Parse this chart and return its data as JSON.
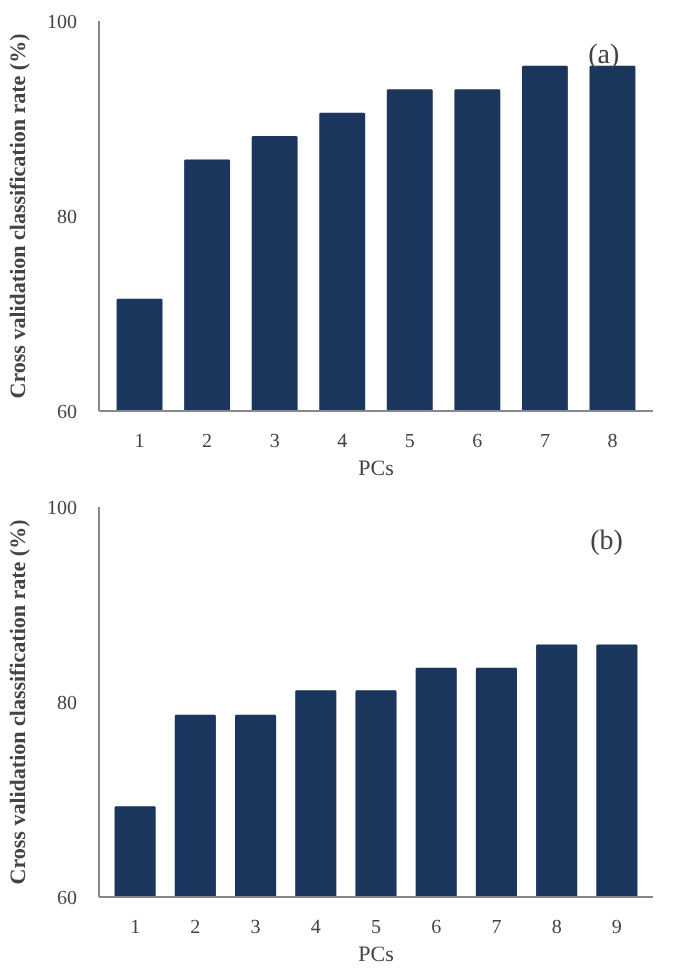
{
  "chart_data": [
    {
      "type": "bar",
      "categories": [
        "1",
        "2",
        "3",
        "4",
        "5",
        "6",
        "7",
        "8"
      ],
      "values": [
        71.4,
        85.7,
        88.1,
        90.5,
        92.9,
        92.9,
        95.3,
        95.3
      ],
      "color": "#1b365d",
      "xlabel": "PCs",
      "ylabel": "Cross validation classification rate (%)",
      "ylim": [
        60,
        100
      ],
      "yticks": [
        60,
        80,
        100
      ],
      "grid": false,
      "annotations": [
        "(a)"
      ]
    },
    {
      "type": "bar",
      "categories": [
        "1",
        "2",
        "3",
        "4",
        "5",
        "6",
        "7",
        "8",
        "9"
      ],
      "values": [
        69.2,
        78.6,
        78.6,
        81.1,
        81.1,
        83.4,
        83.4,
        85.8,
        85.8
      ],
      "color": "#1b365d",
      "xlabel": "PCs",
      "ylabel": "Cross validation classification rate (%)",
      "ylim": [
        60,
        100
      ],
      "yticks": [
        60,
        80,
        100
      ],
      "grid": false,
      "annotations": [
        "(b)"
      ]
    }
  ]
}
